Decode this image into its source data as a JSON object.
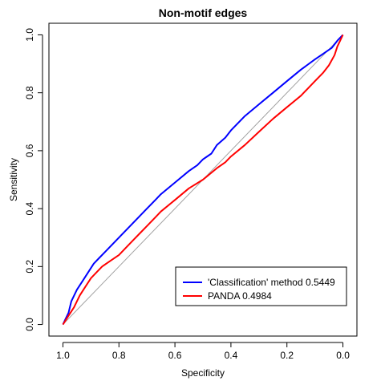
{
  "chart_data": {
    "type": "line",
    "title": "Non-motif edges",
    "xlabel": "Specificity",
    "ylabel": "Sensitivity",
    "xlim": [
      1.05,
      -0.05
    ],
    "ylim": [
      -0.04,
      1.04
    ],
    "x_ticks": [
      {
        "value": 1.0,
        "label": "1.0"
      },
      {
        "value": 0.8,
        "label": "0.8"
      },
      {
        "value": 0.6,
        "label": "0.6"
      },
      {
        "value": 0.4,
        "label": "0.4"
      },
      {
        "value": 0.2,
        "label": "0.2"
      },
      {
        "value": 0.0,
        "label": "0.0"
      }
    ],
    "y_ticks": [
      {
        "value": 0.0,
        "label": "0.0"
      },
      {
        "value": 0.2,
        "label": "0.2"
      },
      {
        "value": 0.4,
        "label": "0.4"
      },
      {
        "value": 0.6,
        "label": "0.6"
      },
      {
        "value": 0.8,
        "label": "0.8"
      },
      {
        "value": 1.0,
        "label": "1.0"
      }
    ],
    "reference_line": {
      "from": [
        1.0,
        0.0
      ],
      "to": [
        0.0,
        1.0
      ],
      "color": "#a0a0a0"
    },
    "legend_position": "bottom-right",
    "series": [
      {
        "name": "'Classification' method 0.5449",
        "color": "#0000ff",
        "x": [
          1.0,
          0.99,
          0.98,
          0.97,
          0.95,
          0.93,
          0.91,
          0.89,
          0.87,
          0.85,
          0.82,
          0.8,
          0.77,
          0.75,
          0.7,
          0.67,
          0.65,
          0.6,
          0.55,
          0.52,
          0.5,
          0.47,
          0.45,
          0.42,
          0.4,
          0.35,
          0.3,
          0.25,
          0.2,
          0.15,
          0.1,
          0.07,
          0.04,
          0.02,
          0.0
        ],
        "y": [
          0.0,
          0.02,
          0.04,
          0.08,
          0.12,
          0.15,
          0.18,
          0.21,
          0.23,
          0.25,
          0.28,
          0.3,
          0.33,
          0.35,
          0.4,
          0.43,
          0.45,
          0.49,
          0.53,
          0.55,
          0.57,
          0.59,
          0.62,
          0.645,
          0.67,
          0.72,
          0.76,
          0.8,
          0.84,
          0.88,
          0.915,
          0.935,
          0.955,
          0.98,
          1.0
        ]
      },
      {
        "name": "PANDA 0.4984",
        "color": "#ff0000",
        "x": [
          1.0,
          0.98,
          0.96,
          0.94,
          0.92,
          0.9,
          0.88,
          0.86,
          0.83,
          0.8,
          0.77,
          0.75,
          0.72,
          0.7,
          0.67,
          0.65,
          0.6,
          0.55,
          0.5,
          0.45,
          0.42,
          0.4,
          0.35,
          0.3,
          0.25,
          0.2,
          0.15,
          0.1,
          0.07,
          0.05,
          0.03,
          0.02,
          0.01,
          0.0
        ],
        "y": [
          0.0,
          0.03,
          0.06,
          0.1,
          0.13,
          0.16,
          0.18,
          0.2,
          0.22,
          0.24,
          0.27,
          0.29,
          0.32,
          0.34,
          0.37,
          0.39,
          0.43,
          0.47,
          0.5,
          0.54,
          0.56,
          0.58,
          0.62,
          0.665,
          0.71,
          0.75,
          0.79,
          0.84,
          0.87,
          0.895,
          0.93,
          0.96,
          0.98,
          1.0
        ]
      }
    ]
  }
}
